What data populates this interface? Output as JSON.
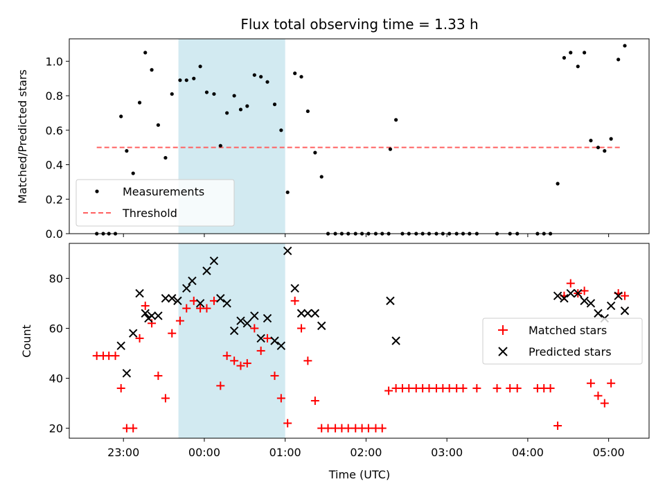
{
  "chart_data": {
    "type": "scatter",
    "title": "Flux total observing time = 1.33 h",
    "xlabel": "Time (UTC)",
    "x_ticks": [
      "23:00",
      "00:00",
      "01:00",
      "02:00",
      "03:00",
      "04:00",
      "05:00"
    ],
    "x_tick_hours": [
      23,
      24,
      25,
      26,
      27,
      28,
      29
    ],
    "xlim_hours": [
      22.33,
      29.5
    ],
    "shaded_interval_hours": [
      23.68,
      25.0
    ],
    "colors": {
      "shade": "#add8e6",
      "measurements": "#000000",
      "threshold": "#ff6060",
      "matched": "#ff0000",
      "predicted": "#000000"
    },
    "panels": [
      {
        "ylabel": "Matched/Predicted stars",
        "ylim": [
          0,
          1.13
        ],
        "y_ticks": [
          "0.0",
          "0.2",
          "0.4",
          "0.6",
          "0.8",
          "1.0"
        ],
        "y_tick_values": [
          0,
          0.2,
          0.4,
          0.6,
          0.8,
          1.0
        ],
        "legend": {
          "position": "lower-left",
          "entries": [
            "Measurements",
            "Threshold"
          ]
        },
        "threshold": {
          "name": "Threshold",
          "value": 0.5,
          "x_range_hours": [
            22.67,
            29.15
          ]
        },
        "series": [
          {
            "name": "Measurements",
            "marker": "dot",
            "points": [
              [
                22.67,
                0
              ],
              [
                22.75,
                0
              ],
              [
                22.82,
                0
              ],
              [
                22.9,
                0
              ],
              [
                22.97,
                0.68
              ],
              [
                23.04,
                0.48
              ],
              [
                23.12,
                0.35
              ],
              [
                23.2,
                0.76
              ],
              [
                23.27,
                1.05
              ],
              [
                23.35,
                0.95
              ],
              [
                23.43,
                0.63
              ],
              [
                23.52,
                0.44
              ],
              [
                23.6,
                0.81
              ],
              [
                23.7,
                0.89
              ],
              [
                23.78,
                0.89
              ],
              [
                23.87,
                0.9
              ],
              [
                23.95,
                0.97
              ],
              [
                24.03,
                0.82
              ],
              [
                24.12,
                0.81
              ],
              [
                24.2,
                0.51
              ],
              [
                24.28,
                0.7
              ],
              [
                24.37,
                0.8
              ],
              [
                24.45,
                0.72
              ],
              [
                24.53,
                0.74
              ],
              [
                24.62,
                0.92
              ],
              [
                24.7,
                0.91
              ],
              [
                24.78,
                0.88
              ],
              [
                24.87,
                0.75
              ],
              [
                24.95,
                0.6
              ],
              [
                25.03,
                0.24
              ],
              [
                25.12,
                0.93
              ],
              [
                25.2,
                0.91
              ],
              [
                25.28,
                0.71
              ],
              [
                25.37,
                0.47
              ],
              [
                25.45,
                0.33
              ],
              [
                25.53,
                0
              ],
              [
                25.62,
                0
              ],
              [
                25.7,
                0
              ],
              [
                25.78,
                0
              ],
              [
                25.87,
                0
              ],
              [
                25.95,
                0
              ],
              [
                26.03,
                0
              ],
              [
                26.12,
                0
              ],
              [
                26.2,
                0
              ],
              [
                26.28,
                0
              ],
              [
                26.3,
                0.49
              ],
              [
                26.37,
                0.66
              ],
              [
                26.45,
                0
              ],
              [
                26.53,
                0
              ],
              [
                26.62,
                0
              ],
              [
                26.7,
                0
              ],
              [
                26.78,
                0
              ],
              [
                26.87,
                0
              ],
              [
                26.95,
                0
              ],
              [
                27.03,
                0
              ],
              [
                27.12,
                0
              ],
              [
                27.2,
                0
              ],
              [
                27.28,
                0
              ],
              [
                27.37,
                0
              ],
              [
                27.62,
                0
              ],
              [
                27.78,
                0
              ],
              [
                27.87,
                0
              ],
              [
                28.12,
                0
              ],
              [
                28.2,
                0
              ],
              [
                28.28,
                0
              ],
              [
                28.37,
                0.29
              ],
              [
                28.45,
                1.02
              ],
              [
                28.53,
                1.05
              ],
              [
                28.62,
                0.97
              ],
              [
                28.7,
                1.05
              ],
              [
                28.78,
                0.54
              ],
              [
                28.87,
                0.5
              ],
              [
                28.95,
                0.48
              ],
              [
                29.03,
                0.55
              ],
              [
                29.12,
                1.01
              ],
              [
                29.2,
                1.09
              ]
            ]
          }
        ]
      },
      {
        "ylabel": "Count",
        "ylim": [
          16,
          94
        ],
        "y_ticks": [
          "20",
          "40",
          "60",
          "80"
        ],
        "y_tick_values": [
          20,
          40,
          60,
          80
        ],
        "legend": {
          "position": "center-right",
          "entries": [
            "Matched stars",
            "Predicted stars"
          ]
        },
        "series": [
          {
            "name": "Matched stars",
            "marker": "plus",
            "points": [
              [
                22.67,
                49
              ],
              [
                22.75,
                49
              ],
              [
                22.82,
                49
              ],
              [
                22.9,
                49
              ],
              [
                22.97,
                36
              ],
              [
                23.04,
                20
              ],
              [
                23.12,
                20
              ],
              [
                23.2,
                56
              ],
              [
                23.27,
                69
              ],
              [
                23.35,
                62
              ],
              [
                23.43,
                41
              ],
              [
                23.52,
                32
              ],
              [
                23.6,
                58
              ],
              [
                23.7,
                63
              ],
              [
                23.78,
                68
              ],
              [
                23.87,
                71
              ],
              [
                23.95,
                68
              ],
              [
                24.03,
                68
              ],
              [
                24.12,
                71
              ],
              [
                24.2,
                37
              ],
              [
                24.28,
                49
              ],
              [
                24.37,
                47
              ],
              [
                24.45,
                45
              ],
              [
                24.53,
                46
              ],
              [
                24.62,
                60
              ],
              [
                24.7,
                51
              ],
              [
                24.78,
                56
              ],
              [
                24.87,
                41
              ],
              [
                24.95,
                32
              ],
              [
                25.03,
                22
              ],
              [
                25.12,
                71
              ],
              [
                25.2,
                60
              ],
              [
                25.28,
                47
              ],
              [
                25.37,
                31
              ],
              [
                25.45,
                20
              ],
              [
                25.53,
                20
              ],
              [
                25.62,
                20
              ],
              [
                25.7,
                20
              ],
              [
                25.78,
                20
              ],
              [
                25.87,
                20
              ],
              [
                25.95,
                20
              ],
              [
                26.03,
                20
              ],
              [
                26.12,
                20
              ],
              [
                26.2,
                20
              ],
              [
                26.28,
                35
              ],
              [
                26.37,
                36
              ],
              [
                26.45,
                36
              ],
              [
                26.53,
                36
              ],
              [
                26.62,
                36
              ],
              [
                26.7,
                36
              ],
              [
                26.78,
                36
              ],
              [
                26.87,
                36
              ],
              [
                26.95,
                36
              ],
              [
                27.03,
                36
              ],
              [
                27.12,
                36
              ],
              [
                27.2,
                36
              ],
              [
                27.37,
                36
              ],
              [
                27.62,
                36
              ],
              [
                27.78,
                36
              ],
              [
                27.87,
                36
              ],
              [
                28.12,
                36
              ],
              [
                28.2,
                36
              ],
              [
                28.28,
                36
              ],
              [
                28.37,
                21
              ],
              [
                28.45,
                73
              ],
              [
                28.53,
                78
              ],
              [
                28.62,
                74
              ],
              [
                28.7,
                75
              ],
              [
                28.78,
                38
              ],
              [
                28.87,
                33
              ],
              [
                28.95,
                30
              ],
              [
                29.03,
                38
              ],
              [
                29.12,
                74
              ],
              [
                29.2,
                73
              ]
            ]
          },
          {
            "name": "Predicted stars",
            "marker": "x",
            "points": [
              [
                22.97,
                53
              ],
              [
                23.04,
                42
              ],
              [
                23.12,
                58
              ],
              [
                23.2,
                74
              ],
              [
                23.27,
                66
              ],
              [
                23.31,
                64
              ],
              [
                23.35,
                65
              ],
              [
                23.43,
                65
              ],
              [
                23.52,
                72
              ],
              [
                23.6,
                72
              ],
              [
                23.67,
                71
              ],
              [
                23.78,
                76
              ],
              [
                23.85,
                79
              ],
              [
                23.95,
                70
              ],
              [
                24.03,
                83
              ],
              [
                24.12,
                87
              ],
              [
                24.2,
                72
              ],
              [
                24.28,
                70
              ],
              [
                24.37,
                59
              ],
              [
                24.45,
                63
              ],
              [
                24.53,
                62
              ],
              [
                24.62,
                65
              ],
              [
                24.7,
                56
              ],
              [
                24.78,
                64
              ],
              [
                24.87,
                55
              ],
              [
                24.95,
                53
              ],
              [
                25.03,
                91
              ],
              [
                25.12,
                76
              ],
              [
                25.2,
                66
              ],
              [
                25.28,
                66
              ],
              [
                25.37,
                66
              ],
              [
                25.45,
                61
              ],
              [
                26.3,
                71
              ],
              [
                26.37,
                55
              ],
              [
                28.37,
                73
              ],
              [
                28.45,
                72
              ],
              [
                28.53,
                74
              ],
              [
                28.62,
                74
              ],
              [
                28.7,
                71
              ],
              [
                28.78,
                70
              ],
              [
                28.87,
                66
              ],
              [
                28.95,
                64
              ],
              [
                29.03,
                69
              ],
              [
                29.12,
                73
              ],
              [
                29.2,
                67
              ]
            ]
          }
        ]
      }
    ]
  }
}
